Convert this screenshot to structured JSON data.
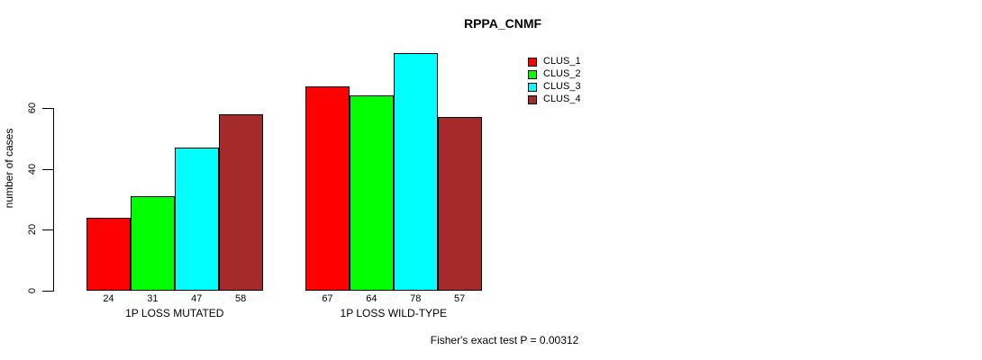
{
  "title": "RPPA_CNMF",
  "y_axis": {
    "label": "number of cases",
    "tick_labels": [
      "0",
      "20",
      "40",
      "60"
    ]
  },
  "legend": {
    "position": "top-right",
    "items": [
      {
        "label": "CLUS_1",
        "color": "#FF0000"
      },
      {
        "label": "CLUS_2",
        "color": "#00FF00"
      },
      {
        "label": "CLUS_3",
        "color": "#00FFFF"
      },
      {
        "label": "CLUS_4",
        "color": "#A52A2A"
      }
    ]
  },
  "footer": {
    "note": "Fisher's exact test P = 0.00312"
  },
  "chart_data": {
    "type": "bar",
    "title": "RPPA_CNMF",
    "xlabel": "",
    "ylabel": "number of cases",
    "ylim": [
      0,
      60
    ],
    "yticks": [
      0,
      20,
      40,
      60
    ],
    "grid": false,
    "legend_position": "top-right",
    "categories": [
      "1P LOSS MUTATED",
      "1P LOSS WILD-TYPE"
    ],
    "series": [
      {
        "name": "CLUS_1",
        "color": "#FF0000",
        "values": [
          24,
          67
        ]
      },
      {
        "name": "CLUS_2",
        "color": "#00FF00",
        "values": [
          31,
          64
        ]
      },
      {
        "name": "CLUS_3",
        "color": "#00FFFF",
        "values": [
          47,
          78
        ]
      },
      {
        "name": "CLUS_4",
        "color": "#A52A2A",
        "values": [
          58,
          57
        ]
      }
    ],
    "bar_value_labels": [
      [
        24,
        31,
        47,
        58
      ],
      [
        67,
        64,
        78,
        57
      ]
    ],
    "annotation": "Fisher's exact test P = 0.00312"
  }
}
